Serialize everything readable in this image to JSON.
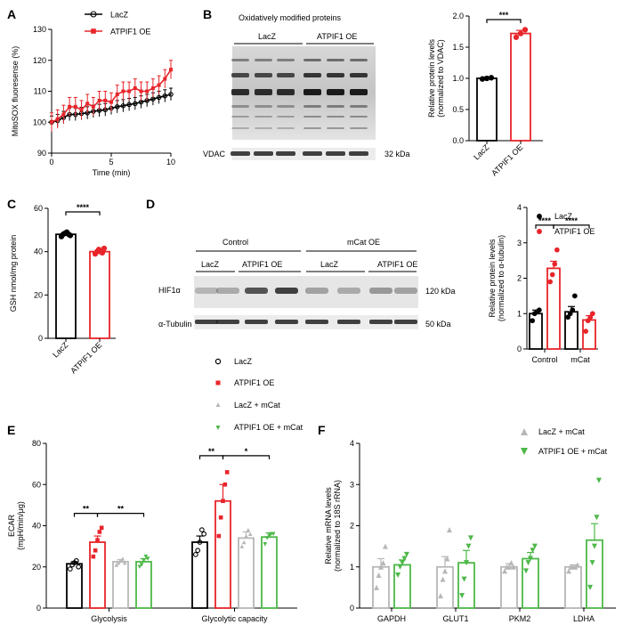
{
  "colors": {
    "lacz": "#000000",
    "atpif1": "#e8252a",
    "lacz_mcat": "#b7b7b7",
    "atpif1_mcat": "#4cb848"
  },
  "panels": {
    "A": "A",
    "B": "B",
    "C": "C",
    "D": "D",
    "E": "E",
    "F": "F"
  },
  "blot_b": {
    "title": "Oxidatively modified proteins",
    "lane_lacz": "LacZ",
    "lane_atpif1": "ATPIF1 OE",
    "vdac": "VDAC",
    "kda": "32 kDa"
  },
  "blot_d": {
    "control": "Control",
    "mcat_oe": "mCat OE",
    "lacz_1": "LacZ",
    "atpif1_1": "ATPIF1 OE",
    "lacz_2": "LacZ",
    "atpif1_2": "ATPIF1 OE",
    "hif": "HIF1α",
    "hif_kda": "120 kDa",
    "tub": "α-Tubulin",
    "tub_kda": "50 kDa"
  },
  "legend_d": {
    "lacz": "LacZ",
    "atpif1": "ATPIF1 OE"
  },
  "legend_mid": {
    "lacz": "LacZ",
    "atpif1": "ATPIF1 OE",
    "lacz_mcat": "LacZ + mCat",
    "atpif1_mcat": "ATPIF1 OE + mCat"
  },
  "legend_f": {
    "lacz_mcat": "LacZ + mCat",
    "atpif1_mcat": "ATPIF1 OE + mCat"
  },
  "chart_data": [
    {
      "panel": "A",
      "type": "line",
      "xlabel": "Time (min)",
      "ylabel": "MitoSOX fluoresense (%)",
      "xlim": [
        0,
        10
      ],
      "ylim": [
        90,
        130
      ],
      "xticks": [
        0,
        5,
        10
      ],
      "yticks": [
        90,
        100,
        110,
        120,
        130
      ],
      "legend": "top-left",
      "x": [
        0,
        0.5,
        1,
        1.5,
        2,
        2.5,
        3,
        3.5,
        4,
        4.5,
        5,
        5.5,
        6,
        6.5,
        7,
        7.5,
        8,
        8.5,
        9,
        9.5,
        10
      ],
      "series": [
        {
          "name": "LacZ",
          "color": "#000000",
          "values": [
            100,
            100.5,
            101.5,
            102.5,
            102.5,
            102.8,
            103,
            103.5,
            103.8,
            104,
            104.5,
            105,
            105.3,
            105.7,
            106,
            106.5,
            107,
            107.5,
            108,
            108.5,
            109
          ],
          "err": [
            2,
            2,
            2,
            2,
            2,
            2,
            2,
            2,
            2,
            2,
            2,
            2,
            2,
            2,
            2,
            2,
            2,
            2,
            2,
            2,
            2
          ]
        },
        {
          "name": "ATPIF1 OE",
          "color": "#e8252a",
          "values": [
            100,
            101,
            102.5,
            105,
            105,
            104,
            106,
            105,
            107,
            107,
            106.5,
            109,
            110,
            110,
            111,
            110,
            110,
            111,
            112,
            114,
            117
          ],
          "err": [
            3,
            3,
            3,
            3,
            3,
            3,
            3,
            3,
            3,
            3,
            3,
            3,
            3,
            3,
            3,
            3,
            3,
            3,
            3,
            3,
            3
          ]
        }
      ]
    },
    {
      "panel": "B",
      "type": "bar",
      "ylabel": "Relative protein levels (normalized to VDAC)",
      "ylim": [
        0,
        2
      ],
      "yticks": [
        "0.0",
        "0.5",
        "1.0",
        "1.5",
        "2.0"
      ],
      "categories": [
        "LacZ",
        "ATPIF1 OE"
      ],
      "values": [
        1.0,
        1.72
      ],
      "err": [
        0.02,
        0.05
      ],
      "points": [
        [
          0.99,
          1.0,
          1.01
        ],
        [
          1.66,
          1.72,
          1.78
        ]
      ],
      "colors": [
        "#000000",
        "#e8252a"
      ],
      "significance": [
        {
          "between": [
            0,
            1
          ],
          "label": "***"
        }
      ]
    },
    {
      "panel": "C",
      "type": "bar",
      "ylabel": "GSH nmol/mg protein",
      "ylim": [
        0,
        60
      ],
      "yticks": [
        "0",
        "20",
        "40",
        "60"
      ],
      "categories": [
        "LacZ",
        "ATPIF1 OE"
      ],
      "values": [
        48,
        40
      ],
      "err": [
        0.7,
        0.8
      ],
      "points": [
        [
          47,
          48,
          48.5,
          49,
          48,
          47.5
        ],
        [
          39,
          40,
          41,
          40,
          39.5,
          41.5
        ]
      ],
      "colors": [
        "#000000",
        "#e8252a"
      ],
      "significance": [
        {
          "between": [
            0,
            1
          ],
          "label": "****"
        }
      ]
    },
    {
      "panel": "D",
      "type": "bar",
      "ylabel": "Relative protein levels (normalized to α-tubulin)",
      "ylim": [
        0,
        4
      ],
      "yticks": [
        "0",
        "1",
        "2",
        "3",
        "4"
      ],
      "categories": [
        "Control",
        "mCat"
      ],
      "series": [
        {
          "name": "LacZ",
          "color": "#000000",
          "values": [
            1.0,
            1.05
          ],
          "err": [
            0.1,
            0.15
          ],
          "points": [
            [
              0.8,
              1.0,
              1.05,
              1.1
            ],
            [
              0.9,
              1.0,
              1.1,
              1.5
            ]
          ]
        },
        {
          "name": "ATPIF1 OE",
          "color": "#e8252a",
          "values": [
            2.28,
            0.82
          ],
          "err": [
            0.2,
            0.12
          ],
          "points": [
            [
              1.9,
              2.1,
              2.4,
              2.8
            ],
            [
              0.5,
              0.8,
              0.9,
              1.0
            ]
          ]
        }
      ],
      "significance": [
        {
          "label": "****",
          "from": "Control LacZ",
          "to": "Control ATPIF1 OE"
        },
        {
          "label": "****",
          "from": "Control ATPIF1 OE",
          "to": "mCat ATPIF1 OE"
        }
      ]
    },
    {
      "panel": "E",
      "type": "bar",
      "ylabel": "ECAR (mpH/min/μg)",
      "ylim": [
        0,
        80
      ],
      "yticks": [
        "0",
        "20",
        "40",
        "60",
        "80"
      ],
      "categories": [
        "Glycolysis",
        "Glycolytic capacity"
      ],
      "series": [
        {
          "name": "LacZ",
          "color": "#000000",
          "values": [
            21.5,
            32
          ],
          "err": [
            1,
            3
          ],
          "points": [
            [
              19,
              21,
              22,
              23,
              20
            ],
            [
              26,
              28,
              32,
              38,
              36
            ]
          ]
        },
        {
          "name": "ATPIF1 OE",
          "color": "#e8252a",
          "values": [
            32,
            52
          ],
          "err": [
            3,
            8
          ],
          "points": [
            [
              25,
              28,
              33,
              37,
              39
            ],
            [
              35,
              44,
              52,
              60,
              66
            ]
          ]
        },
        {
          "name": "LacZ + mCat",
          "color": "#b7b7b7",
          "values": [
            22.5,
            34
          ],
          "err": [
            1,
            3
          ],
          "points": [
            [
              21,
              22,
              23,
              24,
              22
            ],
            [
              30,
              32,
              35,
              38,
              36
            ]
          ]
        },
        {
          "name": "ATPIF1 OE + mCat",
          "color": "#4cb848",
          "values": [
            22.5,
            34.5
          ],
          "err": [
            1.5,
            2
          ],
          "points": [
            [
              20,
              21,
              23,
              25,
              24
            ],
            [
              31,
              34,
              35,
              36,
              36
            ]
          ]
        }
      ],
      "significance": [
        {
          "label": "**",
          "group": "Glycolysis",
          "between": [
            "LacZ",
            "ATPIF1 OE"
          ]
        },
        {
          "label": "**",
          "group": "Glycolysis",
          "between": [
            "ATPIF1 OE",
            "ATPIF1 OE + mCat"
          ]
        },
        {
          "label": "**",
          "group": "Glycolytic capacity",
          "between": [
            "LacZ",
            "ATPIF1 OE"
          ]
        },
        {
          "label": "*",
          "group": "Glycolytic capacity",
          "between": [
            "ATPIF1 OE",
            "ATPIF1 OE + mCat"
          ]
        }
      ]
    },
    {
      "panel": "F",
      "type": "bar",
      "ylabel": "Relative mRNA levels (normalized to 18S rRNA)",
      "ylim": [
        0,
        4
      ],
      "yticks": [
        "0",
        "1",
        "2",
        "3",
        "4"
      ],
      "categories": [
        "GAPDH",
        "GLUT1",
        "PKM2",
        "LDHA"
      ],
      "series": [
        {
          "name": "LacZ + mCat",
          "color": "#b7b7b7",
          "values": [
            1.0,
            1.0,
            1.0,
            1.0
          ],
          "err": [
            0.2,
            0.25,
            0.08,
            0.05
          ],
          "points": [
            [
              0.5,
              0.8,
              1.0,
              1.1,
              1.5
            ],
            [
              0.3,
              0.7,
              0.9,
              1.2,
              1.9
            ],
            [
              0.9,
              1.0,
              1.0,
              1.1,
              1.0
            ],
            [
              0.9,
              1.0,
              1.0,
              1.0,
              1.05
            ]
          ]
        },
        {
          "name": "ATPIF1 OE + mCat",
          "color": "#4cb848",
          "values": [
            1.05,
            1.1,
            1.2,
            1.65
          ],
          "err": [
            0.12,
            0.3,
            0.15,
            0.4
          ],
          "points": [
            [
              0.8,
              1.0,
              1.1,
              1.2,
              1.3
            ],
            [
              0.3,
              0.7,
              1.1,
              1.5,
              1.7
            ],
            [
              0.9,
              1.1,
              1.2,
              1.4,
              1.5
            ],
            [
              0.5,
              1.1,
              1.5,
              2.2,
              3.1
            ]
          ]
        }
      ]
    }
  ]
}
